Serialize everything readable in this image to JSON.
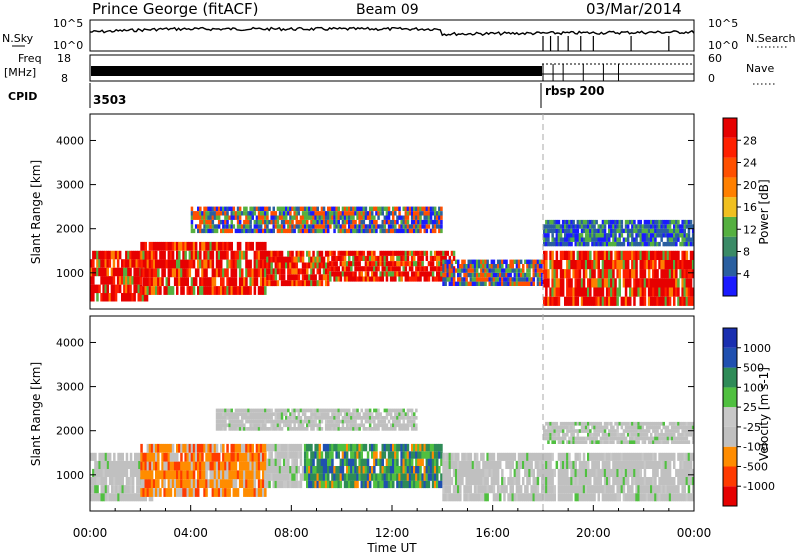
{
  "header": {
    "station": "Prince George (fitACF)",
    "beam": "Beam 09",
    "date": "03/Mar/2014"
  },
  "colors": {
    "power_scale": [
      "#1a1aff",
      "#2a5fa0",
      "#3a8a66",
      "#55b040",
      "#f0c020",
      "#ff8000",
      "#ff5000",
      "#ff2000",
      "#e60000"
    ],
    "velocity_scale": [
      "#e60000",
      "#ff3a00",
      "#ff8c00",
      "#c0c0c0",
      "#c8c8c8",
      "#50c040",
      "#2e8b57",
      "#2050b0",
      "#1a2fb0"
    ],
    "empty": "#ffffff"
  },
  "chart_data": [
    {
      "type": "line",
      "name": "noise-panel",
      "left_label": "N.Sky",
      "right_label": "N.Search",
      "left_ticks": [
        "10^5",
        "10^0"
      ],
      "right_ticks": [
        "10^5",
        "10^0"
      ],
      "scale": "log",
      "x_range_hours": [
        0,
        24
      ]
    },
    {
      "type": "line",
      "name": "frequency-panel",
      "left_label_line1": "Freq",
      "left_label_line2": "[MHz]",
      "right_label": "Nave",
      "left_ticks": [
        "18",
        "8"
      ],
      "right_ticks": [
        "60",
        "0"
      ],
      "x_range_hours": [
        0,
        24
      ]
    },
    {
      "type": "table",
      "name": "cpid-strip",
      "label": "CPID",
      "entries": [
        {
          "start_hour": 0,
          "text": "3503"
        },
        {
          "start_hour": 18,
          "text": "rbsp  200"
        }
      ]
    },
    {
      "type": "heatmap",
      "name": "power-panel",
      "ylabel": "Slant Range [km]",
      "yticks": [
        1000,
        2000,
        3000,
        4000
      ],
      "ylim": [
        180,
        4600
      ],
      "colorbar_label": "Power [dB]",
      "colorbar_ticks": [
        "4",
        "8",
        "12",
        "16",
        "20",
        "24",
        "28"
      ],
      "bands": [
        {
          "t0": 0.0,
          "t1": 2.3,
          "r0": 350,
          "r1": 1500,
          "level": "high"
        },
        {
          "t0": 2.0,
          "t1": 7.0,
          "r0": 500,
          "r1": 1700,
          "level": "high"
        },
        {
          "t0": 7.0,
          "t1": 9.5,
          "r0": 700,
          "r1": 1500,
          "level": "high"
        },
        {
          "t0": 9.5,
          "t1": 14.5,
          "r0": 800,
          "r1": 1500,
          "level": "high"
        },
        {
          "t0": 14.0,
          "t1": 18.0,
          "r0": 700,
          "r1": 1300,
          "level": "mid"
        },
        {
          "t0": 18.0,
          "t1": 24.0,
          "r0": 250,
          "r1": 1500,
          "level": "high"
        },
        {
          "t0": 4.0,
          "t1": 14.0,
          "r0": 1900,
          "r1": 2500,
          "level": "mid"
        },
        {
          "t0": 18.0,
          "t1": 24.0,
          "r0": 1600,
          "r1": 2200,
          "level": "low"
        }
      ]
    },
    {
      "type": "heatmap",
      "name": "velocity-panel",
      "ylabel": "Slant Range [km]",
      "yticks": [
        1000,
        2000,
        3000,
        4000
      ],
      "ylim": [
        180,
        4600
      ],
      "colorbar_label": "Velocity [m s-1]",
      "colorbar_ticks": [
        "-1000",
        "-500",
        "-100",
        "-25",
        "25",
        "100",
        "500",
        "1000"
      ],
      "bands": [
        {
          "t0": 0.0,
          "t1": 2.5,
          "r0": 400,
          "r1": 1500,
          "level": "gray"
        },
        {
          "t0": 2.0,
          "t1": 7.0,
          "r0": 500,
          "r1": 1700,
          "level": "negative"
        },
        {
          "t0": 7.0,
          "t1": 8.5,
          "r0": 700,
          "r1": 1700,
          "level": "gray"
        },
        {
          "t0": 8.5,
          "t1": 14.0,
          "r0": 700,
          "r1": 1700,
          "level": "positive"
        },
        {
          "t0": 5.0,
          "t1": 13.0,
          "r0": 2000,
          "r1": 2500,
          "level": "gray"
        },
        {
          "t0": 14.0,
          "t1": 24.0,
          "r0": 400,
          "r1": 1500,
          "level": "gray"
        },
        {
          "t0": 18.0,
          "t1": 24.0,
          "r0": 1700,
          "r1": 2200,
          "level": "gray"
        }
      ]
    }
  ],
  "time_axis": {
    "xlabel": "Time UT",
    "tick_labels": [
      "00:00",
      "04:00",
      "08:00",
      "12:00",
      "16:00",
      "20:00",
      "00:00"
    ],
    "tick_hours": [
      0,
      4,
      8,
      12,
      16,
      20,
      24
    ],
    "marker_hour": 18
  }
}
